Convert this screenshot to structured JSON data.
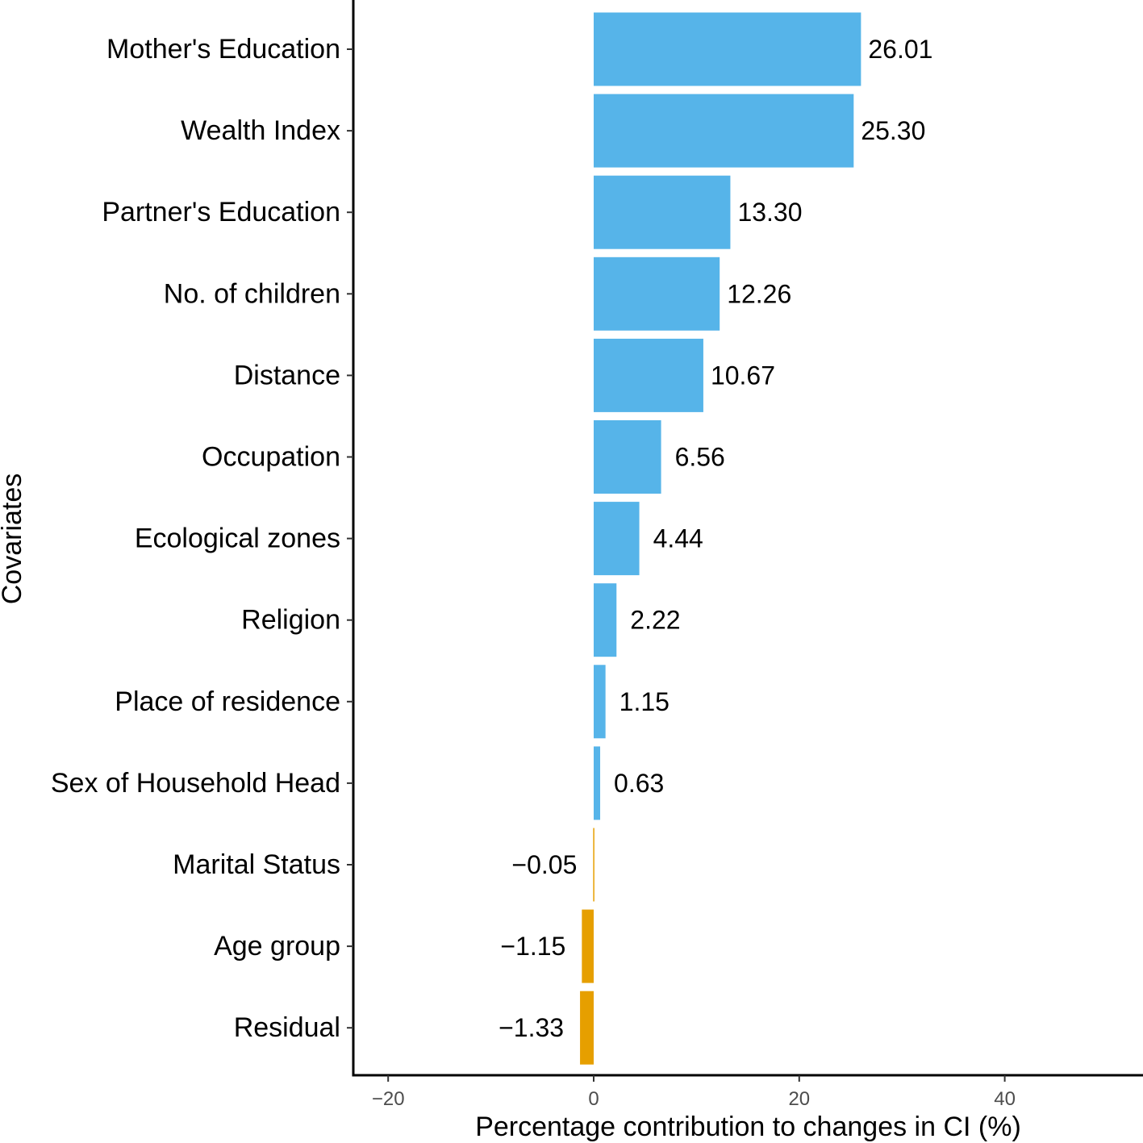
{
  "chart_data": {
    "type": "bar",
    "orientation": "horizontal",
    "title": "",
    "xlabel": "Percentage contribution to changes in CI (%)",
    "ylabel": "Covariates",
    "categories": [
      "Mother's Education",
      "Wealth Index",
      "Partner's Education",
      "No. of children",
      "Distance",
      "Occupation",
      "Ecological zones",
      "Religion",
      "Place of residence",
      "Sex of Household Head",
      "Marital Status",
      "Age group",
      "Residual"
    ],
    "values": [
      26.01,
      25.3,
      13.3,
      12.26,
      10.67,
      6.56,
      4.44,
      2.22,
      1.15,
      0.63,
      -0.05,
      -1.15,
      -1.33
    ],
    "value_labels": [
      "26.01",
      "25.30",
      "13.30",
      "12.26",
      "10.67",
      "6.56",
      "4.44",
      "2.22",
      "1.15",
      "0.63",
      "−0.05",
      "−1.15",
      "−1.33"
    ],
    "xlim": [
      -23.5,
      53
    ],
    "xticks": [
      -20,
      0,
      20,
      40
    ],
    "xtick_labels": [
      "−20",
      "0",
      "20",
      "40"
    ],
    "grid": false,
    "legend": "none",
    "colors": {
      "positive": "#56B4E9",
      "negative": "#E69F00"
    }
  }
}
